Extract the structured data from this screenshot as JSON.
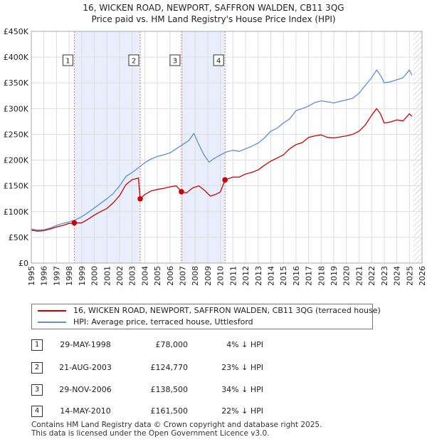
{
  "title": {
    "line1": "16, WICKEN ROAD, NEWPORT, SAFFRON WALDEN, CB11 3QG",
    "line2": "Price paid vs. HM Land Registry's House Price Index (HPI)"
  },
  "colors": {
    "property": "#cc0000",
    "hpi": "#5b8fd4",
    "shade": "#e8eefb",
    "vline": "#e0707a"
  },
  "legend": {
    "property_label": "16, WICKEN ROAD, NEWPORT, SAFFRON WALDEN, CB11 3QG (terraced house)",
    "hpi_label": "HPI: Average price, terraced house, Uttlesford"
  },
  "transactions": [
    {
      "num": "1",
      "date": "29-MAY-1998",
      "price": "£78,000",
      "diff": "4% ↓ HPI"
    },
    {
      "num": "2",
      "date": "21-AUG-2003",
      "price": "£124,770",
      "diff": "23% ↓ HPI"
    },
    {
      "num": "3",
      "date": "29-NOV-2006",
      "price": "£138,500",
      "diff": "34% ↓ HPI"
    },
    {
      "num": "4",
      "date": "14-MAY-2010",
      "price": "£161,500",
      "diff": "22% ↓ HPI"
    }
  ],
  "footer": {
    "line1": "Contains HM Land Registry data © Crown copyright and database right 2025.",
    "line2": "This data is licensed under the Open Government Licence v3.0."
  },
  "chart_data": {
    "type": "line",
    "xlim": [
      1995,
      2026
    ],
    "ylim": [
      0,
      450000
    ],
    "y_ticks": [
      0,
      50000,
      100000,
      150000,
      200000,
      250000,
      300000,
      350000,
      400000,
      450000
    ],
    "y_tick_labels": [
      "£0",
      "£50K",
      "£100K",
      "£150K",
      "£200K",
      "£250K",
      "£300K",
      "£350K",
      "£400K",
      "£450K"
    ],
    "x_ticks": [
      1995,
      1996,
      1997,
      1998,
      1999,
      2000,
      2001,
      2002,
      2003,
      2004,
      2005,
      2006,
      2007,
      2008,
      2009,
      2010,
      2011,
      2012,
      2013,
      2014,
      2015,
      2016,
      2017,
      2018,
      2019,
      2020,
      2021,
      2022,
      2023,
      2024,
      2025,
      2026
    ],
    "x_tick_labels": [
      "1995",
      "1996",
      "1997",
      "1998",
      "1999",
      "2000",
      "2001",
      "2002",
      "2003",
      "2004",
      "2005",
      "2006",
      "2007",
      "2008",
      "2009",
      "2010",
      "2011",
      "2012",
      "2013",
      "2014",
      "2015",
      "2016",
      "2017",
      "2018",
      "2019",
      "2020",
      "2021",
      "2022",
      "2023",
      "2024",
      "2025",
      "2026"
    ],
    "shaded_periods": [
      [
        1998.41,
        2003.64
      ],
      [
        2006.91,
        2010.37
      ]
    ],
    "sale_markers": [
      {
        "label": "1",
        "x": 1998.41,
        "y": 78000
      },
      {
        "label": "2",
        "x": 2003.64,
        "y": 124770
      },
      {
        "label": "3",
        "x": 2006.91,
        "y": 138500
      },
      {
        "label": "4",
        "x": 2010.37,
        "y": 161500
      }
    ],
    "future_hatch_from": 2025.3,
    "series": [
      {
        "name": "16, WICKEN ROAD, NEWPORT, SAFFRON WALDEN, CB11 3QG (terraced house)",
        "x": [
          1995.0,
          1995.5,
          1996.0,
          1996.5,
          1997.0,
          1997.5,
          1998.0,
          1998.41,
          1998.41,
          1999.0,
          1999.5,
          2000.0,
          2000.5,
          2001.0,
          2001.5,
          2002.0,
          2002.5,
          2003.0,
          2003.5,
          2003.64,
          2003.64,
          2004.0,
          2004.5,
          2005.0,
          2005.5,
          2006.0,
          2006.5,
          2006.91,
          2006.91,
          2007.3,
          2007.8,
          2008.3,
          2008.8,
          2009.2,
          2009.6,
          2010.0,
          2010.37,
          2010.37,
          2011.0,
          2011.5,
          2012.0,
          2012.5,
          2013.0,
          2013.5,
          2014.0,
          2014.5,
          2015.0,
          2015.5,
          2016.0,
          2016.5,
          2017.0,
          2017.5,
          2018.0,
          2018.5,
          2019.0,
          2019.5,
          2020.0,
          2020.5,
          2021.0,
          2021.5,
          2022.0,
          2022.4,
          2022.7,
          2023.0,
          2023.5,
          2024.0,
          2024.5,
          2025.0,
          2025.2
        ],
        "values": [
          64000,
          62000,
          63000,
          66000,
          70000,
          73000,
          77000,
          78000,
          78000,
          78000,
          85000,
          93000,
          100000,
          106000,
          117000,
          131000,
          152000,
          162000,
          165000,
          124770,
          124770,
          133000,
          140000,
          143000,
          145000,
          148000,
          150000,
          138500,
          138500,
          136000,
          146000,
          150000,
          140000,
          130000,
          133000,
          138000,
          161500,
          161500,
          167000,
          167000,
          173000,
          176000,
          181000,
          190000,
          198000,
          204000,
          210000,
          222000,
          230000,
          234000,
          244000,
          247000,
          249000,
          244000,
          243000,
          245000,
          247000,
          250000,
          256000,
          268000,
          287000,
          300000,
          290000,
          272000,
          274000,
          278000,
          276000,
          290000,
          285000
        ]
      },
      {
        "name": "HPI: Average price, terraced house, Uttlesford",
        "x": [
          1995.0,
          1995.5,
          1996.0,
          1996.5,
          1997.0,
          1997.5,
          1998.0,
          1998.5,
          1999.0,
          1999.5,
          2000.0,
          2000.5,
          2001.0,
          2001.5,
          2002.0,
          2002.5,
          2003.0,
          2003.5,
          2004.0,
          2004.5,
          2005.0,
          2005.5,
          2006.0,
          2006.5,
          2007.0,
          2007.5,
          2007.9,
          2008.3,
          2008.7,
          2009.1,
          2009.5,
          2010.0,
          2010.5,
          2011.0,
          2011.5,
          2012.0,
          2012.5,
          2013.0,
          2013.5,
          2014.0,
          2014.5,
          2015.0,
          2015.5,
          2016.0,
          2016.5,
          2017.0,
          2017.5,
          2018.0,
          2018.5,
          2019.0,
          2019.5,
          2020.0,
          2020.5,
          2021.0,
          2021.5,
          2022.0,
          2022.4,
          2022.7,
          2023.0,
          2023.5,
          2024.0,
          2024.5,
          2025.0,
          2025.2
        ],
        "values": [
          66000,
          64000,
          65000,
          68000,
          73000,
          77000,
          80000,
          84000,
          90000,
          98000,
          107000,
          116000,
          125000,
          135000,
          150000,
          168000,
          176000,
          185000,
          195000,
          202000,
          207000,
          210000,
          214000,
          222000,
          230000,
          238000,
          252000,
          230000,
          210000,
          196000,
          203000,
          210000,
          216000,
          219000,
          217000,
          222000,
          227000,
          233000,
          243000,
          256000,
          262000,
          272000,
          280000,
          296000,
          300000,
          305000,
          312000,
          315000,
          313000,
          311000,
          314000,
          317000,
          320000,
          330000,
          345000,
          360000,
          375000,
          365000,
          350000,
          352000,
          356000,
          360000,
          375000,
          365000
        ]
      }
    ]
  }
}
